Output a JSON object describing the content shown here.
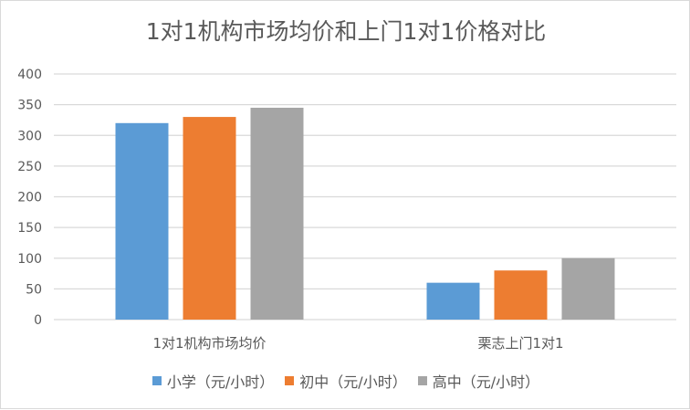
{
  "chart_data": {
    "type": "bar",
    "title": "1对1机构市场均价和上门1对1价格对比",
    "categories": [
      "1对1机构市场均价",
      "栗志上门1对1"
    ],
    "series": [
      {
        "name": "小学（元/小时）",
        "color": "#5b9bd5",
        "values": [
          320,
          60
        ]
      },
      {
        "name": "初中（元/小时）",
        "color": "#ed7d31",
        "values": [
          330,
          80
        ]
      },
      {
        "name": "高中（元/小时）",
        "color": "#a5a5a5",
        "values": [
          345,
          100
        ]
      }
    ],
    "ylim": [
      0,
      400
    ],
    "yticks": [
      0,
      50,
      100,
      150,
      200,
      250,
      300,
      350,
      400
    ],
    "grid": true,
    "legend": "bottom",
    "xlabel": "",
    "ylabel": ""
  }
}
